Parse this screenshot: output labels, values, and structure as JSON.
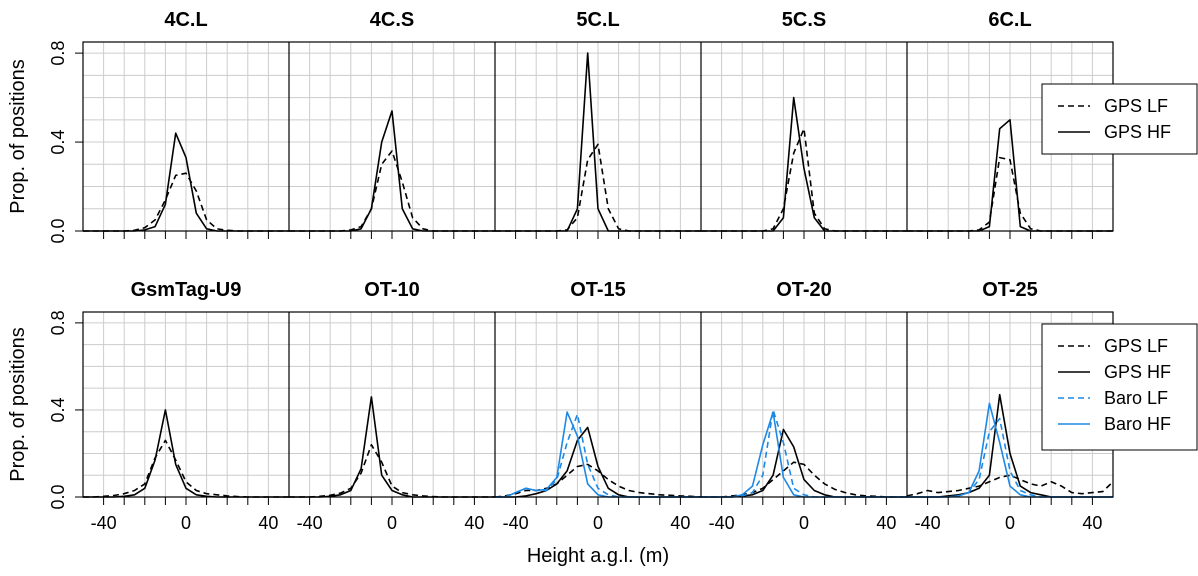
{
  "chart_data": {
    "type": "line",
    "xlabel": "Height a.g.l. (m)",
    "ylabel": "Prop. of positions",
    "xlim": [
      -50,
      50
    ],
    "ylim": [
      0,
      0.85
    ],
    "x_ticks": [
      -40,
      0,
      40
    ],
    "y_ticks": [
      0.0,
      0.4,
      0.8
    ],
    "y_tick_labels": [
      "0.0",
      "0.4",
      "0.8"
    ],
    "grid": true,
    "legend_placement": "right",
    "colors": {
      "gps": "#000000",
      "baro": "#1e88e5",
      "grid": "#cccccc"
    },
    "legend_top": [
      {
        "label": "GPS LF",
        "style": "dashed",
        "color": "#000000"
      },
      {
        "label": "GPS HF",
        "style": "solid",
        "color": "#000000"
      }
    ],
    "legend_bottom": [
      {
        "label": "GPS LF",
        "style": "dashed",
        "color": "#000000"
      },
      {
        "label": "GPS HF",
        "style": "solid",
        "color": "#000000"
      },
      {
        "label": "Baro LF",
        "style": "dashed",
        "color": "#1e88e5"
      },
      {
        "label": "Baro HF",
        "style": "solid",
        "color": "#1e88e5"
      }
    ],
    "x": [
      -50,
      -45,
      -40,
      -35,
      -30,
      -25,
      -20,
      -15,
      -10,
      -5,
      0,
      5,
      10,
      15,
      20,
      25,
      30,
      35,
      40,
      45,
      50
    ],
    "panels": [
      {
        "title": "4C.L",
        "row": 0,
        "series": [
          {
            "name": "GPS LF",
            "values": [
              0,
              0,
              0,
              0,
              0,
              0.003,
              0.015,
              0.05,
              0.14,
              0.25,
              0.26,
              0.18,
              0.05,
              0.01,
              0.003,
              0,
              0,
              0,
              0,
              0,
              0
            ]
          },
          {
            "name": "GPS HF",
            "values": [
              0,
              0,
              0,
              0,
              0,
              0,
              0.005,
              0.02,
              0.12,
              0.44,
              0.33,
              0.08,
              0.01,
              0,
              0,
              0,
              0,
              0,
              0,
              0,
              0
            ]
          }
        ]
      },
      {
        "title": "4C.S",
        "row": 0,
        "series": [
          {
            "name": "GPS LF",
            "values": [
              0,
              0,
              0,
              0,
              0,
              0,
              0.005,
              0.02,
              0.1,
              0.3,
              0.36,
              0.22,
              0.06,
              0.01,
              0,
              0,
              0,
              0,
              0,
              0,
              0
            ]
          },
          {
            "name": "GPS HF",
            "values": [
              0,
              0,
              0,
              0,
              0,
              0,
              0,
              0.01,
              0.1,
              0.4,
              0.54,
              0.1,
              0.01,
              0,
              0,
              0,
              0,
              0,
              0,
              0,
              0
            ]
          }
        ]
      },
      {
        "title": "5C.L",
        "row": 0,
        "series": [
          {
            "name": "GPS LF",
            "values": [
              0,
              0,
              0,
              0,
              0,
              0,
              0,
              0.005,
              0.06,
              0.32,
              0.39,
              0.1,
              0.01,
              0,
              0,
              0,
              0,
              0,
              0,
              0,
              0
            ]
          },
          {
            "name": "GPS HF",
            "values": [
              0,
              0,
              0,
              0,
              0,
              0,
              0,
              0,
              0.1,
              0.8,
              0.1,
              0,
              0,
              0,
              0,
              0,
              0,
              0,
              0,
              0,
              0
            ]
          }
        ]
      },
      {
        "title": "5C.S",
        "row": 0,
        "series": [
          {
            "name": "GPS LF",
            "values": [
              0,
              0,
              0,
              0,
              0,
              0,
              0,
              0.01,
              0.1,
              0.35,
              0.46,
              0.08,
              0.01,
              0,
              0,
              0,
              0,
              0,
              0,
              0,
              0
            ]
          },
          {
            "name": "GPS HF",
            "values": [
              0,
              0,
              0,
              0,
              0,
              0,
              0,
              0,
              0.06,
              0.6,
              0.28,
              0.06,
              0,
              0,
              0,
              0,
              0,
              0,
              0,
              0,
              0
            ]
          }
        ]
      },
      {
        "title": "6C.L",
        "row": 0,
        "series": [
          {
            "name": "GPS LF",
            "values": [
              0,
              0,
              0,
              0,
              0,
              0,
              0,
              0.005,
              0.04,
              0.33,
              0.32,
              0.08,
              0.01,
              0,
              0,
              0,
              0,
              0,
              0,
              0,
              0
            ]
          },
          {
            "name": "GPS HF",
            "values": [
              0,
              0,
              0,
              0,
              0,
              0,
              0,
              0,
              0.02,
              0.46,
              0.5,
              0.02,
              0,
              0,
              0,
              0,
              0,
              0,
              0,
              0,
              0
            ]
          }
        ]
      },
      {
        "title": "GsmTag-U9",
        "row": 1,
        "series": [
          {
            "name": "GPS LF",
            "values": [
              0,
              0,
              0.003,
              0.007,
              0.015,
              0.03,
              0.06,
              0.18,
              0.26,
              0.17,
              0.07,
              0.03,
              0.015,
              0.01,
              0.005,
              0.002,
              0,
              0,
              0,
              0,
              0
            ]
          },
          {
            "name": "GPS HF",
            "values": [
              0,
              0,
              0,
              0,
              0.003,
              0.01,
              0.04,
              0.17,
              0.4,
              0.15,
              0.04,
              0.01,
              0.003,
              0,
              0,
              0,
              0,
              0,
              0,
              0,
              0
            ]
          }
        ]
      },
      {
        "title": "OT-10",
        "row": 1,
        "series": [
          {
            "name": "GPS LF",
            "values": [
              0,
              0,
              0,
              0.003,
              0.008,
              0.018,
              0.04,
              0.11,
              0.24,
              0.16,
              0.05,
              0.02,
              0.01,
              0.005,
              0.002,
              0,
              0,
              0,
              0,
              0,
              0
            ]
          },
          {
            "name": "GPS HF",
            "values": [
              0,
              0,
              0,
              0,
              0.003,
              0.01,
              0.03,
              0.13,
              0.46,
              0.1,
              0.03,
              0.01,
              0,
              0,
              0,
              0,
              0,
              0,
              0,
              0,
              0
            ]
          }
        ]
      },
      {
        "title": "OT-15",
        "row": 1,
        "series": [
          {
            "name": "GPS LF",
            "values": [
              0,
              0.005,
              0.015,
              0.03,
              0.03,
              0.04,
              0.06,
              0.1,
              0.14,
              0.15,
              0.12,
              0.08,
              0.05,
              0.03,
              0.02,
              0.015,
              0.01,
              0.008,
              0.005,
              0.003,
              0
            ]
          },
          {
            "name": "GPS HF",
            "values": [
              0,
              0,
              0,
              0.005,
              0.015,
              0.03,
              0.06,
              0.12,
              0.26,
              0.32,
              0.14,
              0.04,
              0.01,
              0,
              0,
              0,
              0,
              0,
              0,
              0,
              0
            ]
          },
          {
            "name": "Baro LF",
            "values": [
              0,
              0,
              0.02,
              0.04,
              0.03,
              0.03,
              0.08,
              0.25,
              0.38,
              0.15,
              0.04,
              0.01,
              0,
              0,
              0,
              0,
              0,
              0,
              0,
              0,
              0
            ]
          },
          {
            "name": "Baro HF",
            "values": [
              0,
              0,
              0.02,
              0.04,
              0.03,
              0.035,
              0.09,
              0.39,
              0.28,
              0.06,
              0.01,
              0,
              0,
              0,
              0,
              0,
              0,
              0,
              0,
              0,
              0
            ]
          }
        ]
      },
      {
        "title": "OT-20",
        "row": 1,
        "series": [
          {
            "name": "GPS LF",
            "values": [
              0,
              0,
              0,
              0.005,
              0.01,
              0.02,
              0.04,
              0.08,
              0.12,
              0.16,
              0.15,
              0.1,
              0.06,
              0.035,
              0.02,
              0.01,
              0.005,
              0.003,
              0,
              0,
              0
            ]
          },
          {
            "name": "GPS HF",
            "values": [
              0,
              0,
              0,
              0,
              0.005,
              0.01,
              0.03,
              0.1,
              0.31,
              0.23,
              0.08,
              0.03,
              0.01,
              0,
              0,
              0,
              0,
              0,
              0,
              0,
              0
            ]
          },
          {
            "name": "Baro LF",
            "values": [
              0,
              0,
              0,
              0,
              0.005,
              0.02,
              0.1,
              0.4,
              0.25,
              0.04,
              0.01,
              0,
              0,
              0,
              0,
              0,
              0,
              0,
              0,
              0,
              0
            ]
          },
          {
            "name": "Baro HF",
            "values": [
              0,
              0,
              0,
              0,
              0.01,
              0.05,
              0.24,
              0.39,
              0.09,
              0.01,
              0,
              0,
              0,
              0,
              0,
              0,
              0,
              0,
              0,
              0,
              0
            ]
          }
        ]
      },
      {
        "title": "OT-25",
        "row": 1,
        "series": [
          {
            "name": "GPS LF",
            "values": [
              0.005,
              0.015,
              0.03,
              0.02,
              0.025,
              0.03,
              0.04,
              0.05,
              0.07,
              0.09,
              0.1,
              0.08,
              0.06,
              0.05,
              0.07,
              0.05,
              0.02,
              0.015,
              0.02,
              0.025,
              0.07
            ]
          },
          {
            "name": "GPS HF",
            "values": [
              0,
              0,
              0,
              0,
              0.005,
              0.01,
              0.02,
              0.04,
              0.1,
              0.47,
              0.2,
              0.05,
              0.02,
              0.01,
              0,
              0,
              0,
              0,
              0,
              0,
              0
            ]
          },
          {
            "name": "Baro LF",
            "values": [
              0,
              0,
              0,
              0,
              0,
              0.005,
              0.02,
              0.08,
              0.3,
              0.36,
              0.12,
              0.03,
              0.01,
              0,
              0,
              0,
              0,
              0,
              0,
              0,
              0
            ]
          },
          {
            "name": "Baro HF",
            "values": [
              0,
              0,
              0,
              0,
              0,
              0.005,
              0.02,
              0.12,
              0.43,
              0.25,
              0.05,
              0.01,
              0,
              0,
              0,
              0,
              0,
              0,
              0,
              0,
              0
            ]
          }
        ]
      }
    ]
  }
}
